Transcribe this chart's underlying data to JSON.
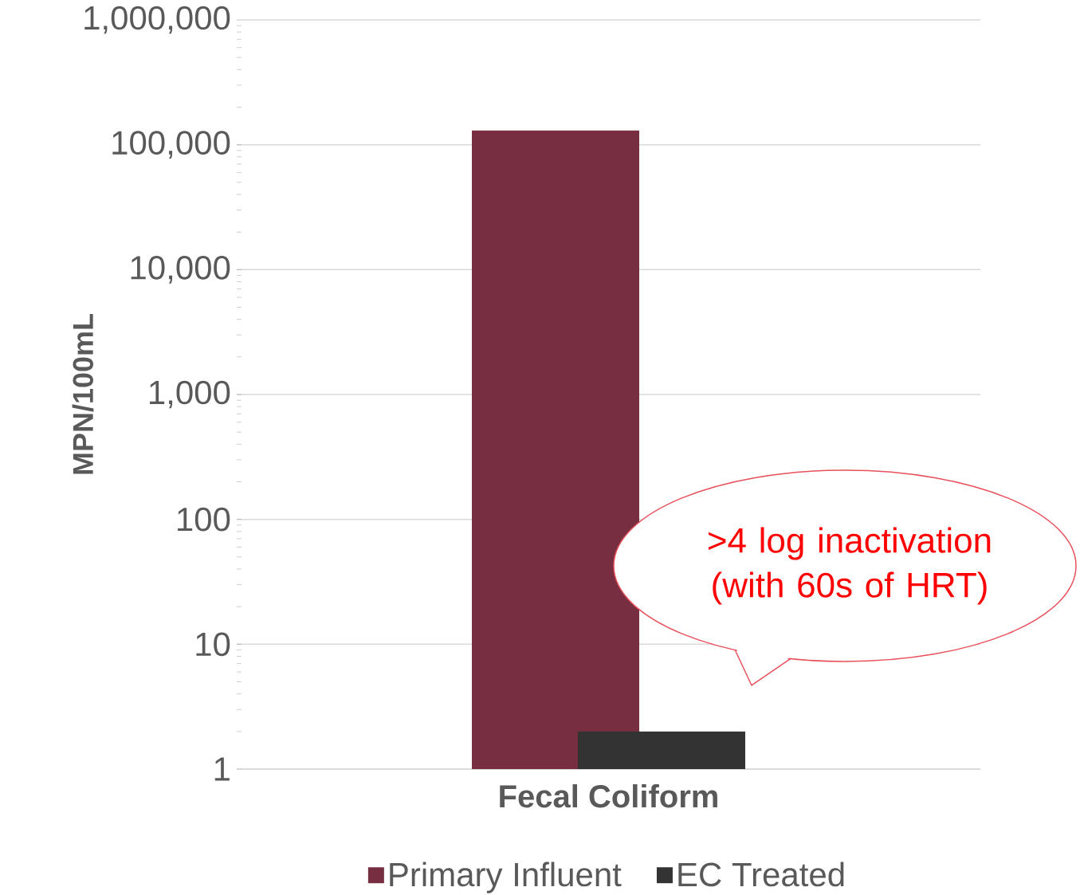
{
  "chart_data": {
    "type": "bar",
    "categories": [
      "Fecal Coliform"
    ],
    "ylabel": "MPN/100mL",
    "log": "y",
    "ylim": [
      1,
      1000000
    ],
    "yticks": [
      1,
      10,
      100,
      {
        "value": 1000,
        "label": "1,000"
      },
      {
        "value": 10000,
        "label": "10,000"
      },
      {
        "value": 100000,
        "label": "100,000"
      },
      {
        "value": 1000000,
        "label": "1,000,000"
      }
    ],
    "grid": "y",
    "legend": "bottom",
    "series": [
      {
        "name": "Primary Influent",
        "color": "#772e40",
        "values": [
          130000
        ]
      },
      {
        "name": "EC Treated",
        "color": "#333333",
        "values": [
          2
        ]
      }
    ],
    "annotations": [
      ">4 log inactivation (with 60s of HRT)"
    ]
  }
}
